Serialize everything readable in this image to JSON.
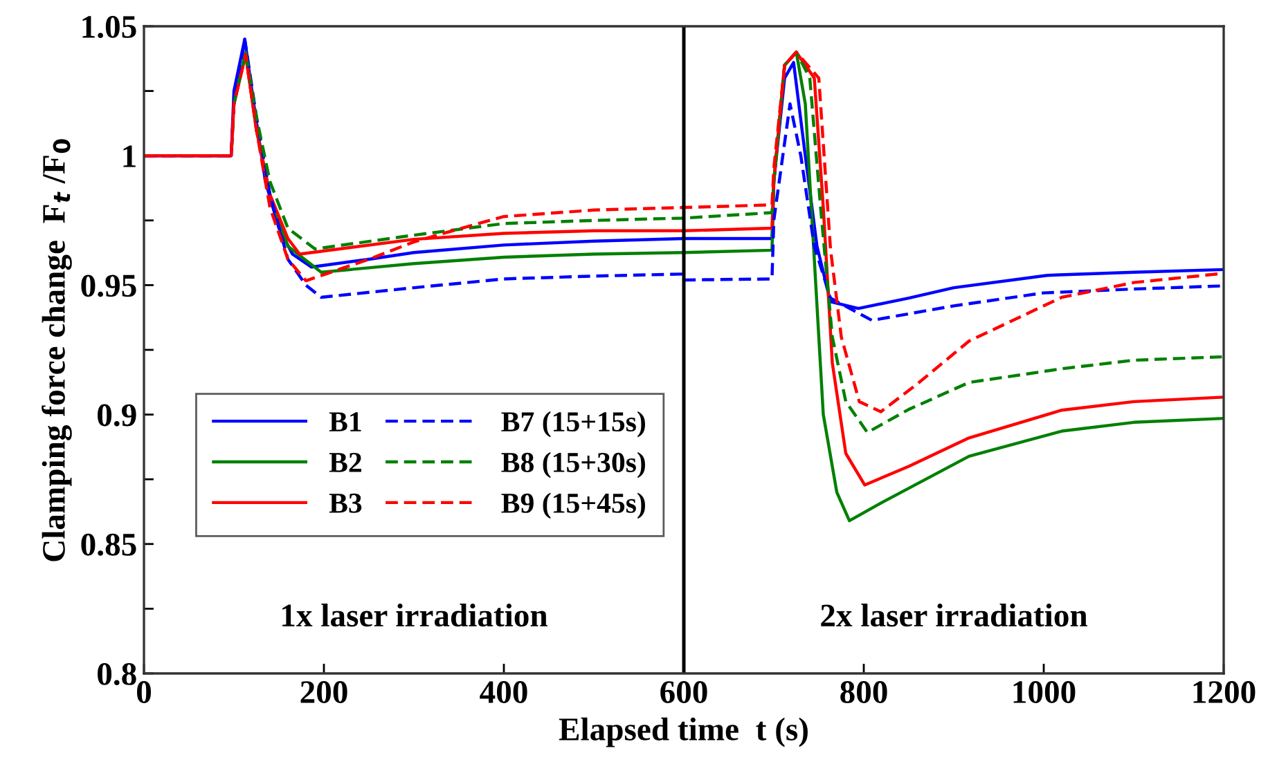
{
  "chart_data": {
    "type": "line",
    "xlabel": "Elapsed time  t (s)",
    "ylabel": "Clamping force change  F$_{t}$ /F$_{0}$",
    "xlim": [
      0,
      1200
    ],
    "ylim": [
      0.8,
      1.05
    ],
    "xticks": [
      0,
      200,
      400,
      600,
      800,
      1000,
      1200
    ],
    "yticks": [
      0.8,
      {
        "value": 0.825,
        "label": null
      },
      0.85,
      {
        "value": 0.875,
        "label": null
      },
      0.9,
      {
        "value": 0.925,
        "label": null
      },
      0.95,
      {
        "value": 0.975,
        "label": null
      },
      1,
      {
        "value": 1.025,
        "label": null
      },
      1.05
    ],
    "grid": false,
    "legend": "lower left",
    "marker": "none",
    "ref_lines": [
      {
        "axis": "x",
        "value": 600,
        "color": "#000000",
        "line_style": "solid"
      }
    ],
    "annotations": [
      "1x laser irradiation",
      "2x laser irradiation"
    ],
    "series": [
      {
        "name": "B1",
        "color": "#0000ff",
        "line_style": "solid",
        "x": [
          0,
          97,
          100,
          112,
          122,
          135,
          150,
          165,
          186,
          250,
          300,
          400,
          500,
          600,
          601,
          698,
          700,
          712,
          722,
          735,
          748,
          763,
          794,
          850,
          900,
          1004,
          1100,
          1198
        ],
        "values": [
          1.0,
          1.0,
          1.025,
          1.045,
          1.02,
          0.99,
          0.972,
          0.962,
          0.957,
          0.96,
          0.9626,
          0.9655,
          0.967,
          0.968,
          0.968,
          0.968,
          0.99,
          1.03,
          1.036,
          1.0,
          0.965,
          0.9436,
          0.941,
          0.945,
          0.949,
          0.9538,
          0.955,
          0.956
        ]
      },
      {
        "name": "B2",
        "color": "#008000",
        "line_style": "solid",
        "x": [
          100,
          113,
          125,
          140,
          160,
          197,
          300,
          400,
          500,
          600,
          698,
          700,
          712,
          725,
          735,
          745,
          755,
          770,
          784,
          820,
          917,
          1020,
          1100,
          1198
        ],
        "values": [
          1.02,
          1.04,
          1.01,
          0.985,
          0.965,
          0.955,
          0.9583,
          0.9608,
          0.962,
          0.9626,
          0.9635,
          0.99,
          1.035,
          1.04,
          1.02,
          0.96,
          0.9,
          0.87,
          0.859,
          0.866,
          0.8839,
          0.8936,
          0.897,
          0.8985
        ]
      },
      {
        "name": "B3",
        "color": "#ff0000",
        "line_style": "solid",
        "x": [
          0,
          97,
          100,
          113,
          125,
          140,
          160,
          173,
          300,
          400,
          500,
          600,
          698,
          700,
          712,
          725,
          745,
          755,
          765,
          780,
          801,
          850,
          917,
          1020,
          1100,
          1198
        ],
        "values": [
          1.0,
          1.0,
          1.02,
          1.039,
          1.01,
          0.985,
          0.968,
          0.962,
          0.9677,
          0.97,
          0.971,
          0.971,
          0.972,
          0.99,
          1.035,
          1.04,
          1.03,
          0.98,
          0.92,
          0.885,
          0.8728,
          0.88,
          0.891,
          0.9017,
          0.905,
          0.9067
        ]
      },
      {
        "name": "B7 (15+15s)",
        "color": "#0000ff",
        "line_style": "dashed",
        "x": [
          0,
          97,
          100,
          112,
          125,
          140,
          160,
          180,
          197,
          300,
          400,
          500,
          600,
          601,
          698,
          700,
          710,
          718,
          730,
          745,
          763,
          809,
          900,
          1000,
          1100,
          1198
        ],
        "values": [
          1.0,
          1.0,
          1.02,
          1.045,
          1.015,
          0.985,
          0.96,
          0.95,
          0.9453,
          0.949,
          0.9524,
          0.9535,
          0.9543,
          0.952,
          0.9524,
          0.975,
          1.0,
          1.02,
          1.0,
          0.965,
          0.945,
          0.9364,
          0.942,
          0.947,
          0.9485,
          0.9497
        ]
      },
      {
        "name": "B8 (15+30s)",
        "color": "#008000",
        "line_style": "dashed",
        "x": [
          100,
          113,
          125,
          140,
          160,
          190,
          300,
          400,
          500,
          600,
          698,
          700,
          712,
          725,
          740,
          752,
          765,
          780,
          804,
          850,
          917,
          1020,
          1100,
          1198
        ],
        "values": [
          1.02,
          1.04,
          1.015,
          0.99,
          0.972,
          0.964,
          0.9693,
          0.9738,
          0.975,
          0.9759,
          0.978,
          0.99,
          1.035,
          1.04,
          1.03,
          0.98,
          0.93,
          0.905,
          0.8931,
          0.902,
          0.9124,
          0.9177,
          0.921,
          0.9223
        ]
      },
      {
        "name": "B9 (15+45s)",
        "color": "#ff0000",
        "line_style": "dashed",
        "x": [
          0,
          97,
          100,
          113,
          125,
          140,
          160,
          180,
          250,
          300,
          353,
          400,
          500,
          600,
          698,
          700,
          712,
          725,
          750,
          763,
          775,
          795,
          819,
          860,
          917,
          1020,
          1100,
          1198
        ],
        "values": [
          1.0,
          1.0,
          1.02,
          1.039,
          1.01,
          0.98,
          0.96,
          0.9517,
          0.96,
          0.9667,
          0.972,
          0.9765,
          0.979,
          0.98,
          0.981,
          0.995,
          1.035,
          1.04,
          1.03,
          0.964,
          0.93,
          0.905,
          0.9011,
          0.912,
          0.9284,
          0.9453,
          0.951,
          0.9545
        ]
      }
    ]
  }
}
